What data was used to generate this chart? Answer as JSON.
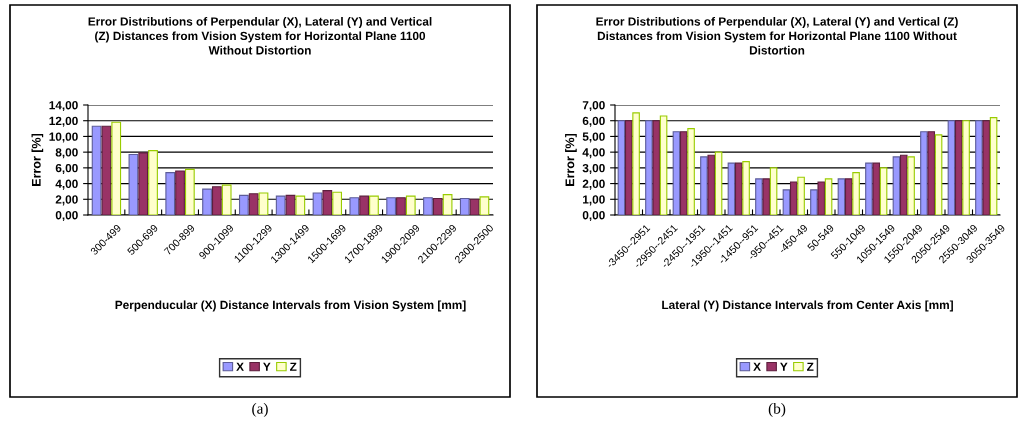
{
  "chart_data": [
    {
      "type": "bar",
      "title": "Error Distributions of Perpendular (X), Lateral (Y) and Vertical\n(Z) Distances from Vision System for Horizontal Plane 1100\nWithout Distortion",
      "xlabel": "Perpenducular (X) Distance Intervals from Vision System [mm]",
      "ylabel": "Error [%]",
      "categories": [
        "300-499",
        "500-699",
        "700-899",
        "900-1099",
        "1100-1299",
        "1300-1499",
        "1500-1699",
        "1700-1899",
        "1900-2099",
        "2100-2299",
        "2300-2500"
      ],
      "series": [
        {
          "name": "X",
          "color": "#9999ff",
          "values": [
            11.3,
            7.7,
            5.4,
            3.3,
            2.5,
            2.4,
            2.8,
            2.2,
            2.2,
            2.2,
            2.1
          ]
        },
        {
          "name": "Y",
          "color": "#993366",
          "values": [
            11.3,
            7.9,
            5.6,
            3.6,
            2.7,
            2.5,
            3.1,
            2.4,
            2.2,
            2.1,
            2.0
          ]
        },
        {
          "name": "Z",
          "color": "#ffffcc",
          "values": [
            11.8,
            8.2,
            5.8,
            3.8,
            2.8,
            2.4,
            2.9,
            2.4,
            2.4,
            2.6,
            2.3
          ]
        }
      ],
      "ylim": [
        0,
        14
      ],
      "yticks": [
        {
          "value": 0,
          "label": "0,00"
        },
        {
          "value": 2,
          "label": "2,00"
        },
        {
          "value": 4,
          "label": "4,00"
        },
        {
          "value": 6,
          "label": "6,00"
        },
        {
          "value": 8,
          "label": "8,00"
        },
        {
          "value": 10,
          "label": "10,00"
        },
        {
          "value": 12,
          "label": "12,00"
        },
        {
          "value": 14,
          "label": "14,00"
        }
      ],
      "grid": "y",
      "legend": "bottom",
      "annotations": [
        "(a)"
      ]
    },
    {
      "type": "bar",
      "title": "Error Distributions of Perpendular (X), Lateral (Y) and Vertical (Z)\nDistances from Vision System for Horizontal Plane 1100 Without\nDistortion",
      "xlabel": "Lateral (Y) Distance Intervals from Center Axis [mm]",
      "ylabel": "Error [%]",
      "categories": [
        "-3450--2951",
        "-2950--2451",
        "-2450--1951",
        "-1950--1451",
        "-1450--951",
        "-950--451",
        "-450-49",
        "50-549",
        "550-1049",
        "1050-1549",
        "1550-2049",
        "2050-2549",
        "2550-3049",
        "3050-3549"
      ],
      "series": [
        {
          "name": "X",
          "color": "#9999ff",
          "values": [
            6.0,
            6.0,
            5.3,
            3.7,
            3.3,
            2.3,
            1.6,
            1.6,
            2.3,
            3.3,
            3.7,
            5.3,
            6.0,
            6.0
          ]
        },
        {
          "name": "Y",
          "color": "#993366",
          "values": [
            6.0,
            6.0,
            5.3,
            3.8,
            3.3,
            2.3,
            2.1,
            2.1,
            2.3,
            3.3,
            3.8,
            5.3,
            6.0,
            6.0
          ]
        },
        {
          "name": "Z",
          "color": "#ffffcc",
          "values": [
            6.5,
            6.3,
            5.5,
            4.0,
            3.4,
            3.0,
            2.4,
            2.3,
            2.7,
            3.0,
            3.7,
            5.1,
            6.0,
            6.2
          ]
        }
      ],
      "ylim": [
        0,
        7
      ],
      "yticks": [
        {
          "value": 0,
          "label": "0,00"
        },
        {
          "value": 1,
          "label": "1,00"
        },
        {
          "value": 2,
          "label": "2,00"
        },
        {
          "value": 3,
          "label": "3,00"
        },
        {
          "value": 4,
          "label": "4,00"
        },
        {
          "value": 5,
          "label": "5,00"
        },
        {
          "value": 6,
          "label": "6,00"
        },
        {
          "value": 7,
          "label": "7,00"
        }
      ],
      "grid": "y",
      "legend": "bottom",
      "annotations": [
        "(b)"
      ]
    }
  ]
}
